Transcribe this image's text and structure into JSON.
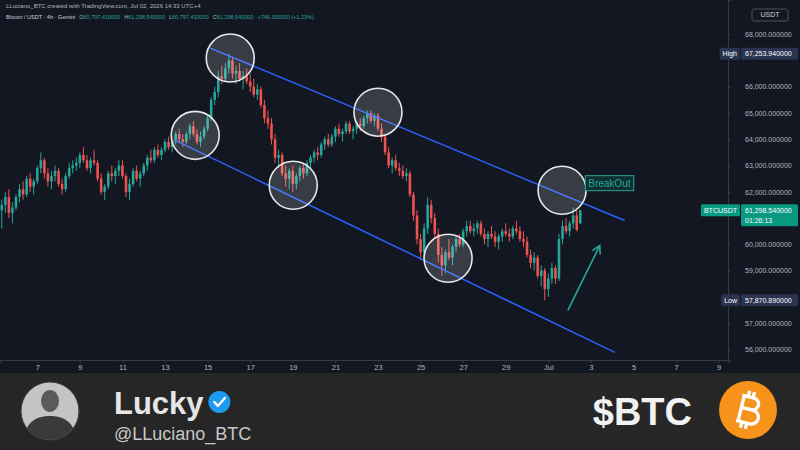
{
  "chart_data": {
    "type": "candlestick",
    "subtitle": "LLuciano_BTC created with TradingView.com, Jul 02, 2026 14:33 UTC+4",
    "title": "Bitcoin / USDT · 4h · Gemini",
    "ohlc_legend": [
      {
        "key": "O",
        "value": "60,797.410000"
      },
      {
        "key": "H",
        "value": "61,298.540000"
      },
      {
        "key": "L",
        "value": "60,797.410000"
      },
      {
        "key": "C",
        "value": "61,298.540000"
      }
    ],
    "change_label": "+746.330000 (+1.23%)",
    "currency": "USDT",
    "grid": false,
    "xlim": [
      "2026-06-05T06:00",
      "2026-07-09T10:30"
    ],
    "xticks": [
      {
        "value": "2026-06-07T00:00",
        "label": "7"
      },
      {
        "value": "2026-06-09T00:00",
        "label": "9"
      },
      {
        "value": "2026-06-11T00:00",
        "label": "11"
      },
      {
        "value": "2026-06-13T00:00",
        "label": "13"
      },
      {
        "value": "2026-06-15T00:00",
        "label": "15"
      },
      {
        "value": "2026-06-17T00:00",
        "label": "17"
      },
      {
        "value": "2026-06-19T00:00",
        "label": "19"
      },
      {
        "value": "2026-06-21T00:00",
        "label": "21"
      },
      {
        "value": "2026-06-23T00:00",
        "label": "23"
      },
      {
        "value": "2026-06-25T00:00",
        "label": "25"
      },
      {
        "value": "2026-06-27T00:00",
        "label": "27"
      },
      {
        "value": "2026-06-29T00:00",
        "label": "29"
      },
      {
        "value": "2026-07-01T00:00",
        "label": "Jul"
      },
      {
        "value": "2026-07-03T00:00",
        "label": "3"
      },
      {
        "value": "2026-07-05T00:00",
        "label": "5"
      },
      {
        "value": "2026-07-07T00:00",
        "label": "7"
      },
      {
        "value": "2026-07-09T00:00",
        "label": "9"
      }
    ],
    "ylim": [
      55600,
      69300
    ],
    "yticks": [
      {
        "value": 56000,
        "label": "56,000.000000"
      },
      {
        "value": 57000,
        "label": "57,000.000000"
      },
      {
        "value": 59000,
        "label": "59,000.000000"
      },
      {
        "value": 60000,
        "label": "60,000.000000"
      },
      {
        "value": 62000,
        "label": "62,000.000000"
      },
      {
        "value": 63000,
        "label": "63,000.000000"
      },
      {
        "value": 64000,
        "label": "64,000.000000"
      },
      {
        "value": 65000,
        "label": "65,000.000000"
      },
      {
        "value": 66000,
        "label": "66,000.000000"
      },
      {
        "value": 68000,
        "label": "68,000.000000"
      }
    ],
    "x": [
      "2026-06-05T08:00",
      "2026-06-05T12:00",
      "2026-06-05T16:00",
      "2026-06-05T20:00",
      "2026-06-06T00:00",
      "2026-06-06T04:00",
      "2026-06-06T08:00",
      "2026-06-06T12:00",
      "2026-06-06T16:00",
      "2026-06-06T20:00",
      "2026-06-07T00:00",
      "2026-06-07T04:00",
      "2026-06-07T08:00",
      "2026-06-07T12:00",
      "2026-06-07T16:00",
      "2026-06-07T20:00",
      "2026-06-08T00:00",
      "2026-06-08T04:00",
      "2026-06-08T08:00",
      "2026-06-08T12:00",
      "2026-06-08T16:00",
      "2026-06-08T20:00",
      "2026-06-09T00:00",
      "2026-06-09T04:00",
      "2026-06-09T08:00",
      "2026-06-09T12:00",
      "2026-06-09T16:00",
      "2026-06-09T20:00",
      "2026-06-10T00:00",
      "2026-06-10T04:00",
      "2026-06-10T08:00",
      "2026-06-10T12:00",
      "2026-06-10T16:00",
      "2026-06-10T20:00",
      "2026-06-11T00:00",
      "2026-06-11T04:00",
      "2026-06-11T08:00",
      "2026-06-11T12:00",
      "2026-06-11T16:00",
      "2026-06-11T20:00",
      "2026-06-12T00:00",
      "2026-06-12T04:00",
      "2026-06-12T08:00",
      "2026-06-12T12:00",
      "2026-06-12T16:00",
      "2026-06-12T20:00",
      "2026-06-13T00:00",
      "2026-06-13T04:00",
      "2026-06-13T08:00",
      "2026-06-13T12:00",
      "2026-06-13T16:00",
      "2026-06-13T20:00",
      "2026-06-14T00:00",
      "2026-06-14T04:00",
      "2026-06-14T08:00",
      "2026-06-14T12:00",
      "2026-06-14T16:00",
      "2026-06-14T20:00",
      "2026-06-15T00:00",
      "2026-06-15T04:00",
      "2026-06-15T08:00",
      "2026-06-15T12:00",
      "2026-06-15T16:00",
      "2026-06-15T20:00",
      "2026-06-16T00:00",
      "2026-06-16T04:00",
      "2026-06-16T08:00",
      "2026-06-16T12:00",
      "2026-06-16T16:00",
      "2026-06-16T20:00",
      "2026-06-17T00:00",
      "2026-06-17T04:00",
      "2026-06-17T08:00",
      "2026-06-17T12:00",
      "2026-06-17T16:00",
      "2026-06-17T20:00",
      "2026-06-18T00:00",
      "2026-06-18T04:00",
      "2026-06-18T08:00",
      "2026-06-18T12:00",
      "2026-06-18T16:00",
      "2026-06-18T20:00",
      "2026-06-19T00:00",
      "2026-06-19T04:00",
      "2026-06-19T08:00",
      "2026-06-19T12:00",
      "2026-06-19T16:00",
      "2026-06-19T20:00",
      "2026-06-20T00:00",
      "2026-06-20T04:00",
      "2026-06-20T08:00",
      "2026-06-20T12:00",
      "2026-06-20T16:00",
      "2026-06-20T20:00",
      "2026-06-21T00:00",
      "2026-06-21T04:00",
      "2026-06-21T08:00",
      "2026-06-21T12:00",
      "2026-06-21T16:00",
      "2026-06-21T20:00",
      "2026-06-22T00:00",
      "2026-06-22T04:00",
      "2026-06-22T08:00",
      "2026-06-22T12:00",
      "2026-06-22T16:00",
      "2026-06-22T20:00",
      "2026-06-23T00:00",
      "2026-06-23T04:00",
      "2026-06-23T08:00",
      "2026-06-23T12:00",
      "2026-06-23T16:00",
      "2026-06-23T20:00",
      "2026-06-24T00:00",
      "2026-06-24T04:00",
      "2026-06-24T08:00",
      "2026-06-24T12:00",
      "2026-06-24T16:00",
      "2026-06-24T20:00",
      "2026-06-25T00:00",
      "2026-06-25T04:00",
      "2026-06-25T08:00",
      "2026-06-25T12:00",
      "2026-06-25T16:00",
      "2026-06-25T20:00",
      "2026-06-26T00:00",
      "2026-06-26T04:00",
      "2026-06-26T08:00",
      "2026-06-26T12:00",
      "2026-06-26T16:00",
      "2026-06-26T20:00",
      "2026-06-27T00:00",
      "2026-06-27T04:00",
      "2026-06-27T08:00",
      "2026-06-27T12:00",
      "2026-06-27T16:00",
      "2026-06-27T20:00",
      "2026-06-28T00:00",
      "2026-06-28T04:00",
      "2026-06-28T08:00",
      "2026-06-28T12:00",
      "2026-06-28T16:00",
      "2026-06-28T20:00",
      "2026-06-29T00:00",
      "2026-06-29T04:00",
      "2026-06-29T08:00",
      "2026-06-29T12:00",
      "2026-06-29T16:00",
      "2026-06-29T20:00",
      "2026-06-30T00:00",
      "2026-06-30T04:00",
      "2026-06-30T08:00",
      "2026-06-30T12:00",
      "2026-06-30T16:00",
      "2026-06-30T20:00",
      "2026-07-01T00:00",
      "2026-07-01T04:00",
      "2026-07-01T08:00",
      "2026-07-01T12:00",
      "2026-07-01T16:00",
      "2026-07-01T20:00",
      "2026-07-02T00:00",
      "2026-07-02T04:00",
      "2026-07-02T08:00",
      "2026-07-02T12:00"
    ],
    "open": [
      61300,
      61500,
      61800,
      61200,
      61400,
      61800,
      62100,
      61900,
      62500,
      62200,
      62400,
      62900,
      63200,
      62700,
      62400,
      62600,
      62800,
      62300,
      62100,
      62600,
      62900,
      63000,
      63100,
      63400,
      63200,
      62900,
      63200,
      63100,
      62500,
      62000,
      62200,
      62700,
      62600,
      62800,
      63000,
      62600,
      62000,
      62300,
      62800,
      62500,
      62700,
      63000,
      63300,
      63200,
      63600,
      63400,
      63600,
      63900,
      63700,
      63900,
      64200,
      64000,
      63900,
      64200,
      64500,
      64200,
      63900,
      64100,
      64400,
      64800,
      65500,
      65800,
      66400,
      66300,
      66700,
      67000,
      66500,
      66600,
      66300,
      66400,
      66200,
      66000,
      65700,
      65900,
      65300,
      64800,
      64600,
      64000,
      63300,
      63400,
      62700,
      62500,
      62800,
      62300,
      62600,
      62900,
      62700,
      63100,
      63300,
      63500,
      63400,
      63800,
      64000,
      63800,
      64100,
      64400,
      64200,
      64300,
      64600,
      64300,
      64400,
      64600,
      64500,
      64800,
      65000,
      64700,
      64900,
      64400,
      64100,
      63500,
      63000,
      63200,
      62900,
      62800,
      62600,
      62700,
      61900,
      61100,
      60200,
      59700,
      60600,
      61500,
      61000,
      60400,
      59600,
      59200,
      59700,
      59500,
      59900,
      60200,
      60000,
      60500,
      60700,
      60500,
      60600,
      60800,
      60400,
      60200,
      60400,
      60300,
      60100,
      60300,
      60500,
      60400,
      60300,
      60600,
      60500,
      60200,
      60100,
      59600,
      59300,
      59500,
      58800,
      59000,
      58300,
      58700,
      59100,
      58700,
      60200,
      60700,
      60500,
      60800,
      61100,
      60797.41
    ],
    "high": [
      61700,
      62000,
      62100,
      61600,
      61900,
      62300,
      62400,
      62600,
      62700,
      62500,
      63000,
      63500,
      63300,
      62900,
      62800,
      63000,
      62900,
      62500,
      62700,
      63100,
      63200,
      63300,
      63500,
      63700,
      63400,
      63300,
      63600,
      63200,
      62700,
      62300,
      62800,
      63000,
      62900,
      63200,
      63200,
      62700,
      62500,
      62900,
      63000,
      62800,
      63100,
      63400,
      63600,
      63700,
      63800,
      63700,
      64000,
      64100,
      64000,
      64300,
      64400,
      64200,
      64300,
      64600,
      64700,
      64400,
      64300,
      64500,
      64900,
      65600,
      66000,
      66600,
      66800,
      66900,
      67253.94,
      67100,
      66800,
      66900,
      66600,
      66700,
      66500,
      66300,
      66100,
      66000,
      65500,
      65100,
      64800,
      64200,
      63600,
      63500,
      63000,
      62900,
      63000,
      62700,
      63000,
      63100,
      63200,
      63400,
      63600,
      63700,
      63900,
      64100,
      64200,
      64200,
      64500,
      64600,
      64400,
      64700,
      64700,
      64500,
      64700,
      64800,
      64900,
      65100,
      65100,
      65000,
      65000,
      64600,
      64200,
      63700,
      63300,
      63400,
      63100,
      63000,
      62900,
      62800,
      62000,
      61300,
      60400,
      60800,
      61800,
      61700,
      61200,
      60600,
      59900,
      59800,
      60200,
      60000,
      60300,
      60400,
      60600,
      60900,
      60900,
      60800,
      60900,
      60900,
      60600,
      60500,
      60700,
      60500,
      60400,
      60600,
      60800,
      60600,
      60700,
      60900,
      60700,
      60500,
      60300,
      59800,
      59700,
      59600,
      59200,
      59100,
      58900,
      59300,
      59200,
      60400,
      60900,
      61000,
      60900,
      61400,
      61300,
      61298.54
    ],
    "low": [
      60600,
      61200,
      61000,
      60800,
      61300,
      61600,
      61700,
      61800,
      62000,
      61900,
      62300,
      62700,
      62500,
      62200,
      62100,
      62400,
      62200,
      61900,
      62000,
      62500,
      62700,
      62800,
      62900,
      63100,
      62800,
      62700,
      63000,
      62400,
      61900,
      61700,
      62100,
      62400,
      62300,
      62600,
      62500,
      61800,
      61700,
      62200,
      62400,
      62200,
      62600,
      62800,
      63100,
      63100,
      63300,
      63200,
      63500,
      63600,
      63500,
      63800,
      63900,
      63700,
      63800,
      64000,
      64100,
      63800,
      63700,
      64000,
      64300,
      64700,
      65300,
      65600,
      66100,
      66200,
      66500,
      66300,
      66100,
      66200,
      65900,
      66100,
      65800,
      65600,
      65500,
      65200,
      64600,
      64400,
      63800,
      63100,
      62900,
      62600,
      62200,
      62100,
      62000,
      62100,
      62400,
      62500,
      62600,
      62900,
      63100,
      63200,
      63300,
      63600,
      63700,
      63700,
      63900,
      64100,
      63900,
      64200,
      64200,
      64000,
      64200,
      64300,
      64400,
      64600,
      64600,
      64500,
      64300,
      63900,
      63400,
      62900,
      62700,
      62800,
      62600,
      62500,
      62400,
      61800,
      60900,
      60000,
      59400,
      59500,
      60400,
      60800,
      60200,
      59300,
      58800,
      58900,
      59400,
      59200,
      59700,
      59900,
      59900,
      60300,
      60400,
      60300,
      60400,
      60300,
      60000,
      59900,
      60200,
      59900,
      59800,
      60100,
      60300,
      60100,
      60200,
      60400,
      60100,
      59900,
      59500,
      59100,
      59000,
      58700,
      58400,
      57870.89,
      58000,
      58500,
      58500,
      58600,
      60000,
      60400,
      60300,
      60600,
      60500,
      60797.41
    ],
    "close": [
      61500,
      61800,
      61200,
      61400,
      61800,
      62100,
      61900,
      62500,
      62200,
      62400,
      62900,
      63200,
      62700,
      62400,
      62600,
      62800,
      62300,
      62100,
      62600,
      62900,
      63000,
      63100,
      63400,
      63200,
      62900,
      63200,
      63100,
      62500,
      62000,
      62200,
      62700,
      62600,
      62800,
      63000,
      62600,
      62000,
      62300,
      62800,
      62500,
      62700,
      63000,
      63300,
      63200,
      63600,
      63400,
      63600,
      63900,
      63700,
      63900,
      64200,
      64000,
      63900,
      64200,
      64500,
      64200,
      63900,
      64100,
      64400,
      64800,
      65500,
      65800,
      66400,
      66300,
      66700,
      67000,
      66500,
      66600,
      66300,
      66400,
      66200,
      66000,
      65700,
      65900,
      65300,
      64800,
      64600,
      64000,
      63300,
      63400,
      62700,
      62500,
      62800,
      62300,
      62600,
      62900,
      62700,
      63100,
      63300,
      63500,
      63400,
      63800,
      64000,
      63800,
      64100,
      64400,
      64200,
      64300,
      64600,
      64300,
      64400,
      64600,
      64500,
      64800,
      65000,
      64700,
      64900,
      64400,
      64100,
      63500,
      63000,
      63200,
      62900,
      62800,
      62600,
      62700,
      61900,
      61100,
      60200,
      59700,
      60600,
      61500,
      61000,
      60400,
      59600,
      59200,
      59700,
      59500,
      59900,
      60200,
      60000,
      60500,
      60700,
      60500,
      60600,
      60800,
      60400,
      60200,
      60400,
      60300,
      60100,
      60300,
      60500,
      60400,
      60300,
      60600,
      60500,
      60200,
      60100,
      59600,
      59300,
      59500,
      58800,
      59000,
      58300,
      58700,
      59100,
      58700,
      60200,
      60700,
      60500,
      60800,
      61100,
      60552.21,
      61298.54
    ],
    "price_labels": [
      {
        "name": "High",
        "value": 67253.94,
        "label": "67,253.940000",
        "color": "#2a3350"
      },
      {
        "name": "Low",
        "value": 57870.89,
        "label": "57,870.890000",
        "color": "#2a3350"
      },
      {
        "name": "BTCUSDT",
        "value": 61298.54,
        "label": "61,298.540000",
        "countdown": "01:26:13",
        "color": "#089981"
      }
    ],
    "channel": [
      {
        "x": [
          "2026-06-15T03:00",
          "2026-07-04T14:00"
        ],
        "y": [
          67470,
          60910
        ],
        "color": "#2962ff"
      },
      {
        "x": [
          "2026-06-13T11:30",
          "2026-07-04T03:00"
        ],
        "y": [
          63960,
          55890
        ],
        "color": "#2962ff"
      }
    ],
    "circles": [
      {
        "x": "2026-06-16T01:30",
        "y": 67090
      },
      {
        "x": "2026-06-14T10:00",
        "y": 64150
      },
      {
        "x": "2026-06-19T00:30",
        "y": 62250
      },
      {
        "x": "2026-06-23T00:00",
        "y": 65030
      },
      {
        "x": "2026-06-26T07:00",
        "y": 59470
      },
      {
        "x": "2026-07-01T15:30",
        "y": 62060
      }
    ],
    "annotations": [
      {
        "text": "BreakOut",
        "x": "2026-07-02T21:00",
        "y": 62330
      }
    ],
    "arrow": {
      "x": [
        "2026-07-01T22:00",
        "2026-07-03T10:00"
      ],
      "y": [
        57490,
        59960
      ],
      "color": "#26a69a"
    }
  },
  "footer": {
    "name": "Lucky",
    "handle": "@LLuciano_BTC",
    "ticker": "$BTC"
  }
}
